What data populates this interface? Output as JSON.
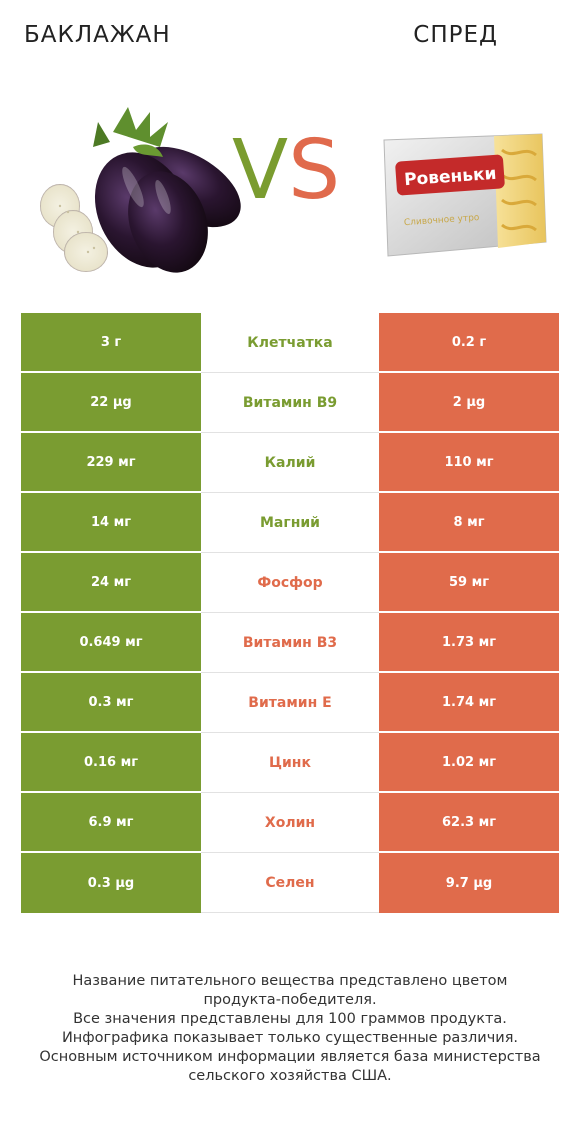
{
  "header": {
    "left_title": "БАКЛАЖАН",
    "right_title": "СПРЕД",
    "vs_v": "V",
    "vs_s": "S"
  },
  "colors": {
    "winner_left": "#7a9c31",
    "winner_right": "#e06b4b"
  },
  "images": {
    "left": "eggplant-illustration",
    "right": "spread-package-illustration",
    "package_brand": "Ровеньки",
    "package_subtitle": "Сливочное утро"
  },
  "rows": [
    {
      "left": "3 г",
      "nutrient": "Клетчатка",
      "right": "0.2 г",
      "winner": "left"
    },
    {
      "left": "22 µg",
      "nutrient": "Витамин B9",
      "right": "2 µg",
      "winner": "left"
    },
    {
      "left": "229 мг",
      "nutrient": "Калий",
      "right": "110 мг",
      "winner": "left"
    },
    {
      "left": "14 мг",
      "nutrient": "Магний",
      "right": "8 мг",
      "winner": "left"
    },
    {
      "left": "24 мг",
      "nutrient": "Фосфор",
      "right": "59 мг",
      "winner": "right"
    },
    {
      "left": "0.649 мг",
      "nutrient": "Витамин B3",
      "right": "1.73 мг",
      "winner": "right"
    },
    {
      "left": "0.3 мг",
      "nutrient": "Витамин E",
      "right": "1.74 мг",
      "winner": "right"
    },
    {
      "left": "0.16 мг",
      "nutrient": "Цинк",
      "right": "1.02 мг",
      "winner": "right"
    },
    {
      "left": "6.9 мг",
      "nutrient": "Холин",
      "right": "62.3 мг",
      "winner": "right"
    },
    {
      "left": "0.3 µg",
      "nutrient": "Селен",
      "right": "9.7 µg",
      "winner": "right"
    }
  ],
  "footer": {
    "lines": [
      "Название питательного вещества представлено цветом",
      "продукта-победителя.",
      "Все значения представлены для 100 граммов продукта.",
      "Инфографика показывает только существенные различия.",
      "Основным источником информации является база министерства",
      "сельского хозяйства США."
    ]
  }
}
